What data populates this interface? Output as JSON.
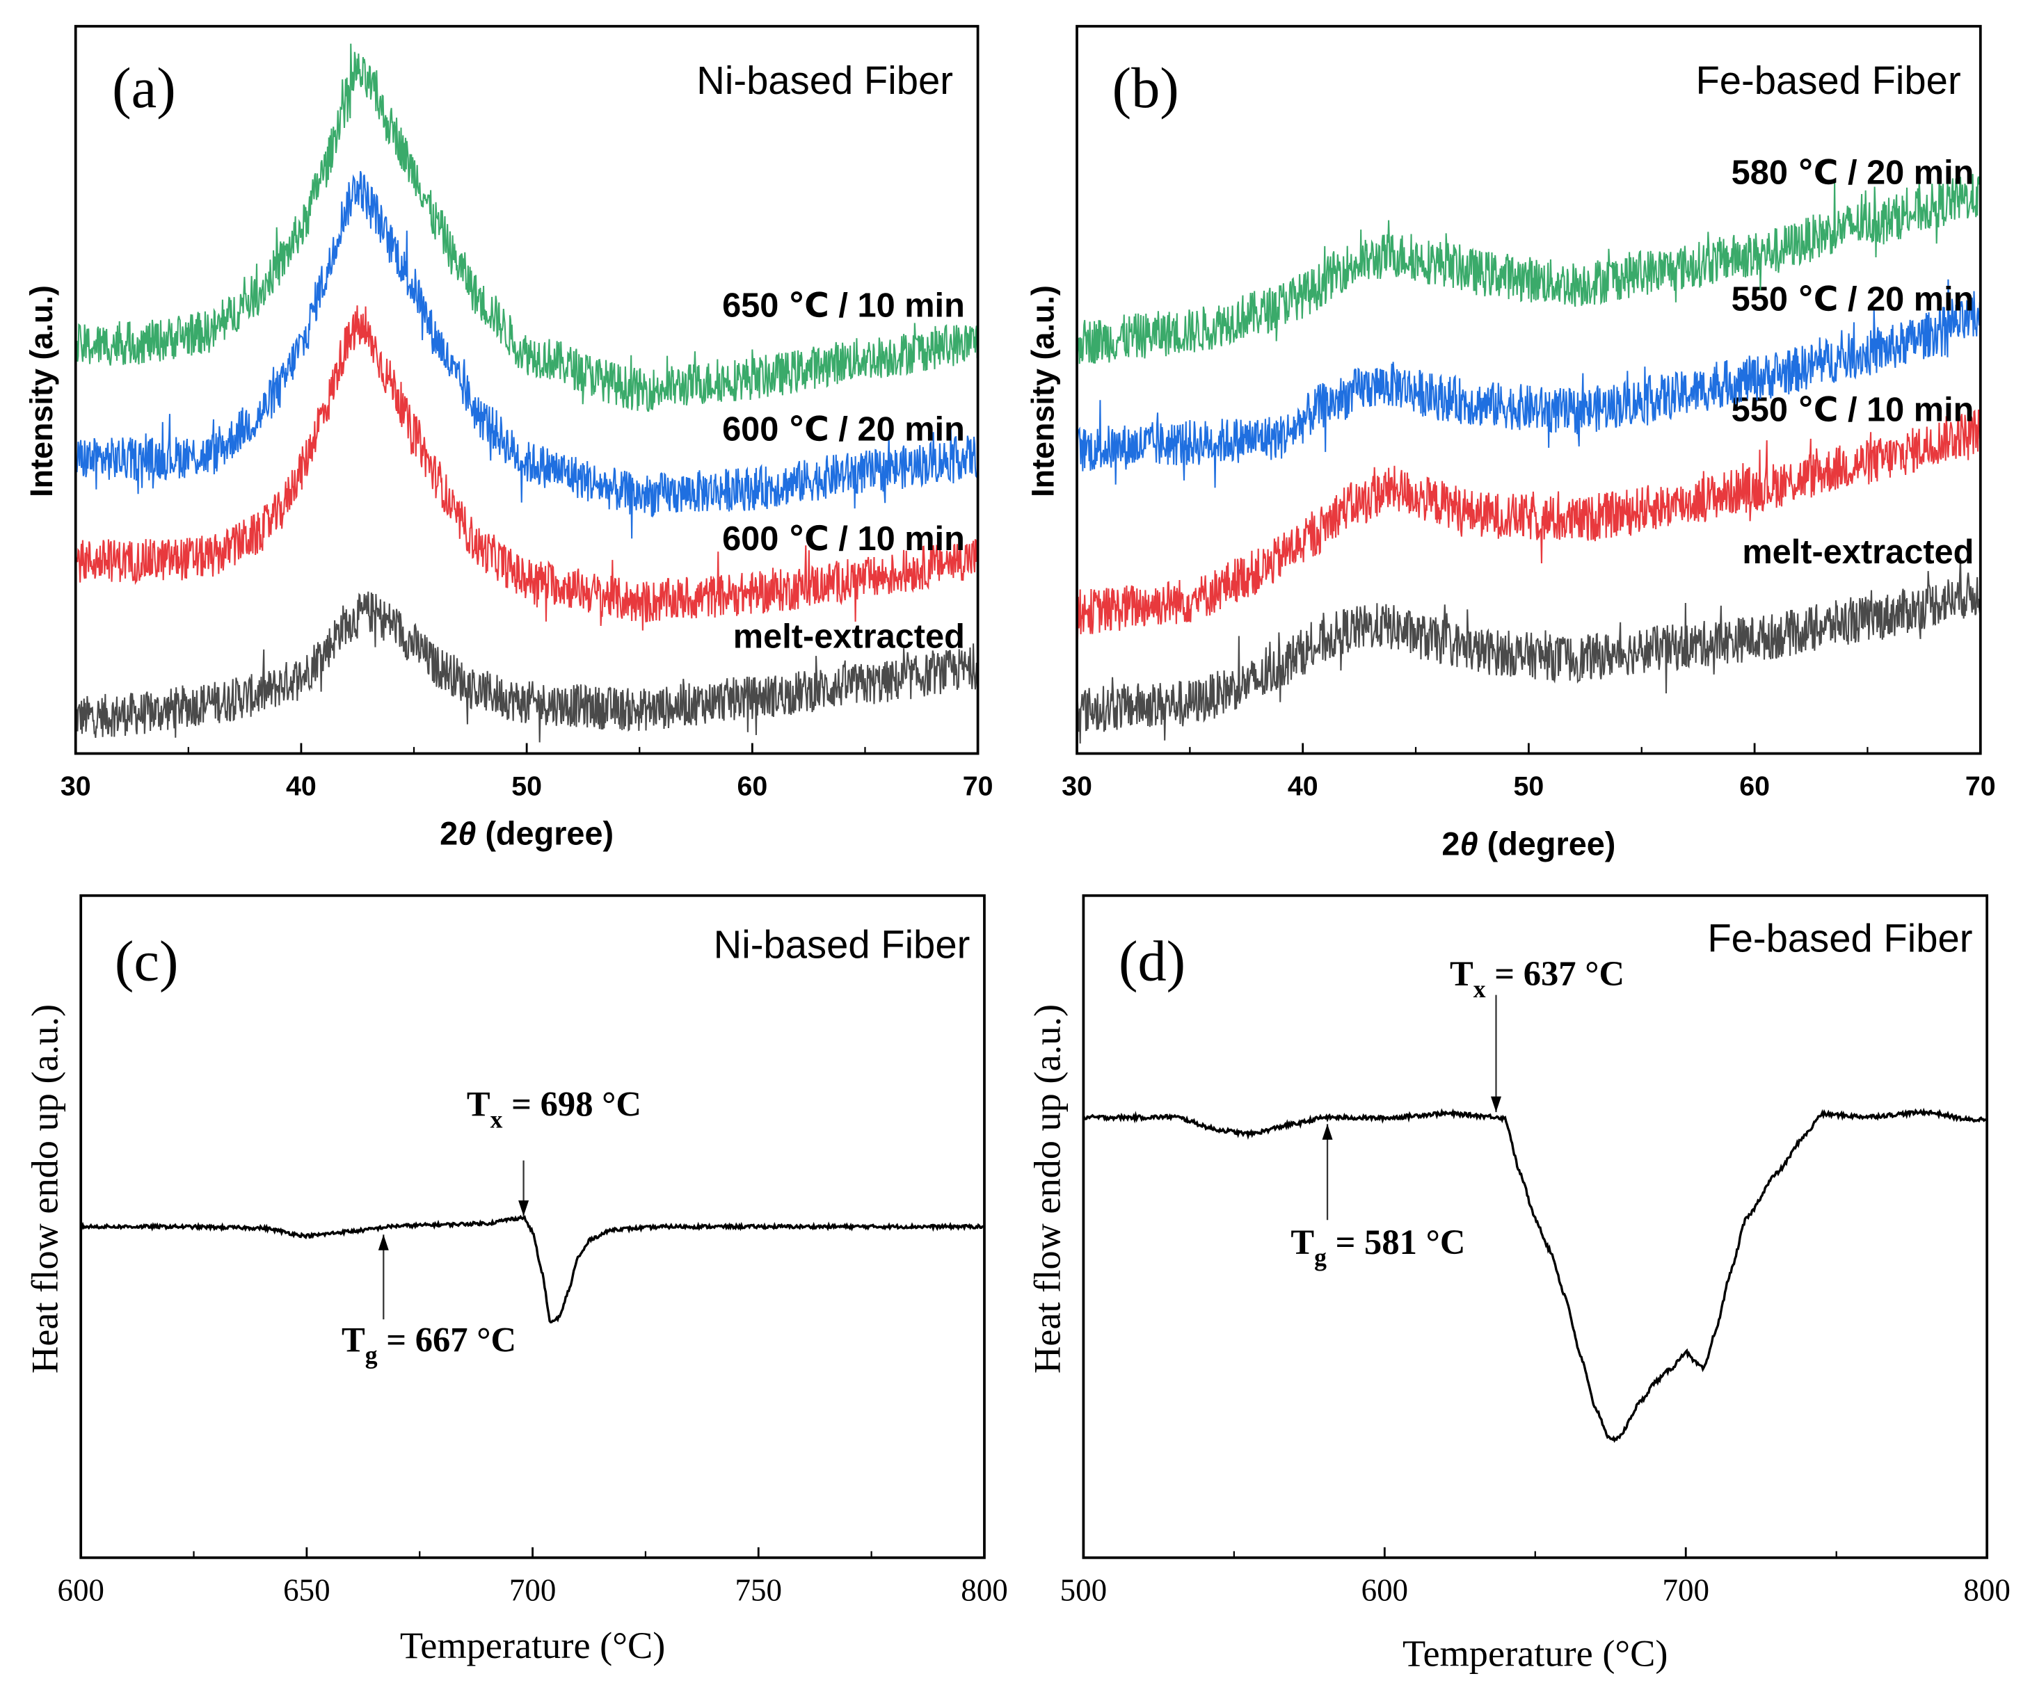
{
  "chart_data": [
    {
      "id": "a",
      "type": "line",
      "panel_label": "(a)",
      "title": "Ni-based Fiber",
      "xlabel_prefix": "2",
      "xlabel_theta": "θ",
      "xlabel_suffix": " (degree)",
      "ylabel": "Intensity (a.u.)",
      "xlim": [
        30,
        70
      ],
      "ylim": [
        0,
        100
      ],
      "xticks": [
        30,
        40,
        50,
        60,
        70
      ],
      "minor_xticks": [
        35,
        45,
        55,
        65
      ],
      "noise": 3,
      "series": [
        {
          "name": "melt-extracted",
          "color": "#4a4a4a",
          "x": [
            30,
            33,
            36,
            38,
            40,
            41,
            42,
            43,
            44,
            45,
            46,
            48,
            50,
            55,
            60,
            65,
            70
          ],
          "y": [
            5,
            5.5,
            7,
            8,
            10.5,
            14,
            18,
            19.5,
            18,
            15,
            12,
            8.5,
            7,
            6,
            7.7,
            9.5,
            11.8
          ]
        },
        {
          "name": "600 ℃ / 10 min",
          "color": "#e8393d",
          "x": [
            30,
            33,
            36,
            38,
            39,
            40,
            41,
            42,
            42.5,
            43,
            44,
            45,
            46,
            47,
            48,
            50,
            55,
            60,
            65,
            70
          ],
          "y": [
            26.5,
            26.5,
            27,
            30,
            33,
            39,
            47,
            56,
            58.8,
            57,
            51,
            44,
            38,
            32,
            28,
            24,
            20.8,
            22,
            24,
            27
          ]
        },
        {
          "name": "600 ℃ / 20 min",
          "color": "#1f6fe0",
          "x": [
            30,
            33,
            36,
            38,
            39,
            40,
            41,
            42,
            42.5,
            43,
            44,
            45,
            46,
            47,
            48,
            50,
            55,
            60,
            65,
            70
          ],
          "y": [
            40.5,
            40.5,
            41,
            46,
            50,
            56,
            65,
            75,
            78.5,
            76,
            70,
            64,
            57,
            51,
            46,
            40,
            35.5,
            36.4,
            38.7,
            40.9
          ]
        },
        {
          "name": "650 ℃ / 10 min",
          "color": "#3aaa6a",
          "x": [
            30,
            33,
            36,
            38,
            39,
            40,
            41,
            42,
            42.5,
            43,
            44,
            45,
            46,
            47,
            48,
            50,
            55,
            60,
            65,
            70
          ],
          "y": [
            56,
            56.5,
            58,
            63,
            67,
            72,
            80,
            90,
            93.7,
            92,
            86,
            80,
            73,
            67,
            62,
            55,
            50,
            51.6,
            54.3,
            56.6
          ]
        }
      ]
    },
    {
      "id": "b",
      "type": "line",
      "panel_label": "(b)",
      "title": "Fe-based Fiber",
      "xlabel_prefix": "2",
      "xlabel_theta": "θ",
      "xlabel_suffix": " (degree)",
      "ylabel": "Intensity (a.u.)",
      "xlim": [
        30,
        70
      ],
      "ylim": [
        0,
        100
      ],
      "xticks": [
        30,
        40,
        50,
        60,
        70
      ],
      "minor_xticks": [
        35,
        45,
        55,
        65
      ],
      "noise": 3.2,
      "series": [
        {
          "name": "melt-extracted",
          "color": "#4a4a4a",
          "x": [
            30,
            35,
            38,
            40,
            42,
            43.5,
            46,
            48,
            52,
            56,
            60,
            65,
            70
          ],
          "y": [
            6,
            7,
            10,
            14,
            17,
            17.6,
            15.5,
            14,
            13,
            14.5,
            15.8,
            18.5,
            22
          ]
        },
        {
          "name": "550 ℃ / 10 min",
          "color": "#e8393d",
          "x": [
            30,
            35,
            38,
            40,
            42,
            44,
            46,
            48,
            52,
            56,
            60,
            65,
            70
          ],
          "y": [
            19.4,
            21,
            25,
            29,
            34,
            36.4,
            34.5,
            32.8,
            32,
            34,
            36.4,
            40,
            44.4
          ]
        },
        {
          "name": "550 ℃ / 20 min",
          "color": "#1f6fe0",
          "x": [
            30,
            35,
            39,
            41,
            43,
            44,
            46,
            48,
            52,
            56,
            60,
            65,
            70
          ],
          "y": [
            41.8,
            42.7,
            43.5,
            48,
            50.5,
            50.7,
            49,
            48,
            47,
            49,
            51.6,
            55,
            59.7
          ]
        },
        {
          "name": "580 ℃ / 20 min",
          "color": "#3aaa6a",
          "x": [
            30,
            35,
            38,
            40,
            42,
            44,
            46,
            48,
            52,
            56,
            60,
            65,
            70
          ],
          "y": [
            56.6,
            58,
            60.5,
            63,
            67,
            68.6,
            67.5,
            66,
            64.5,
            66.5,
            68.6,
            73,
            76.7
          ]
        }
      ]
    },
    {
      "id": "c",
      "type": "line",
      "panel_label": "(c)",
      "title": "Ni-based Fiber",
      "xlabel": "Temperature (°C)",
      "ylabel": "Heat flow endo up (a.u.)",
      "xlim": [
        600,
        800
      ],
      "ylim": [
        0,
        100
      ],
      "xticks": [
        600,
        650,
        700,
        750,
        800
      ],
      "minor_xticks": [
        625,
        675,
        725,
        775
      ],
      "noise": 0.25,
      "series": [
        {
          "name": "DSC",
          "color": "#000000",
          "x": [
            600,
            620,
            640,
            650,
            660,
            670,
            680,
            690,
            696,
            698,
            700,
            702,
            704,
            706,
            708,
            710,
            713,
            718,
            730,
            760,
            800
          ],
          "y": [
            50,
            50,
            49.8,
            48.6,
            49.3,
            50.1,
            50.3,
            50.5,
            51.2,
            51.4,
            49.2,
            43.3,
            35.4,
            36.4,
            40.4,
            45.3,
            48.2,
            49.6,
            50,
            50,
            50
          ]
        }
      ],
      "annotations": [
        {
          "main": "T",
          "sub": "x",
          "rest": " = 698 °C",
          "x": 698,
          "y_from": 60,
          "y_to": 51.6,
          "direction": "down"
        },
        {
          "main": "T",
          "sub": "g",
          "rest": " = 667 °C",
          "x": 667,
          "y_from": 36,
          "y_to": 48.8,
          "direction": "up"
        }
      ]
    },
    {
      "id": "d",
      "type": "line",
      "panel_label": "(d)",
      "title": "Fe-based Fiber",
      "xlabel": "Temperature (°C)",
      "ylabel": "Heat flow endo up (a.u.)",
      "xlim": [
        500,
        800
      ],
      "ylim": [
        0,
        100
      ],
      "xticks": [
        500,
        600,
        700,
        800
      ],
      "minor_xticks": [
        550,
        650,
        750
      ],
      "noise": 0.3,
      "series": [
        {
          "name": "DSC",
          "color": "#000000",
          "x": [
            500,
            520,
            530,
            545,
            555,
            570,
            580,
            600,
            620,
            637,
            640,
            645,
            650,
            655,
            660,
            665,
            670,
            675,
            678,
            685,
            690,
            695,
            700,
            703,
            706,
            710,
            715,
            720,
            730,
            740,
            745,
            760,
            780,
            795,
            800
          ],
          "y": [
            66.5,
            66.5,
            66.6,
            64.6,
            64,
            65.5,
            66.5,
            66.4,
            67.1,
            66.6,
            66.3,
            58,
            51.2,
            46.3,
            39.4,
            30.5,
            22.6,
            17.7,
            18.3,
            23.6,
            26.6,
            28.5,
            31.1,
            29.5,
            28.5,
            34.4,
            43.3,
            51.2,
            58,
            64,
            67,
            66.6,
            67.3,
            66.1,
            66.3
          ]
        }
      ],
      "annotations": [
        {
          "main": "T",
          "sub": "x",
          "rest": " = 637 °C",
          "x": 637,
          "y_from": 85,
          "y_to": 67.3,
          "direction": "down"
        },
        {
          "main": "T",
          "sub": "g",
          "rest": " = 581 °C",
          "x": 581,
          "y_from": 51,
          "y_to": 65.5,
          "direction": "up"
        }
      ]
    }
  ]
}
